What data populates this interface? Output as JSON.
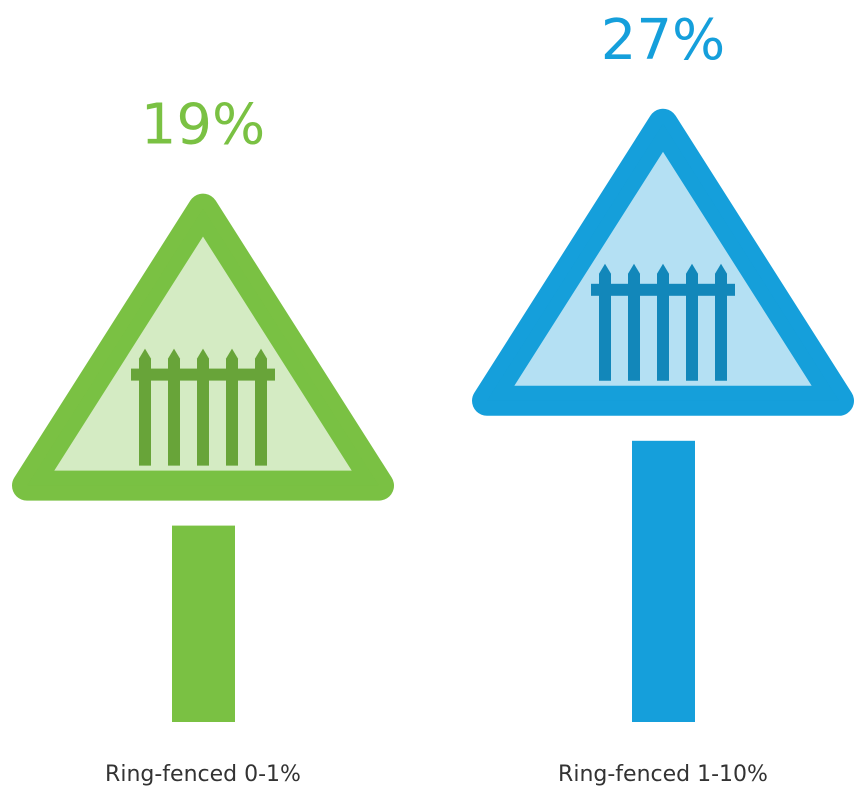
{
  "chart_data": {
    "type": "signpost",
    "categories": [
      "Ring-fenced 0-1%",
      "Ring-fenced 1-10%"
    ],
    "values": [
      19,
      27
    ],
    "value_labels": [
      "19%",
      "27%"
    ],
    "colors": [
      "#7ac143",
      "#159fdb"
    ]
  }
}
